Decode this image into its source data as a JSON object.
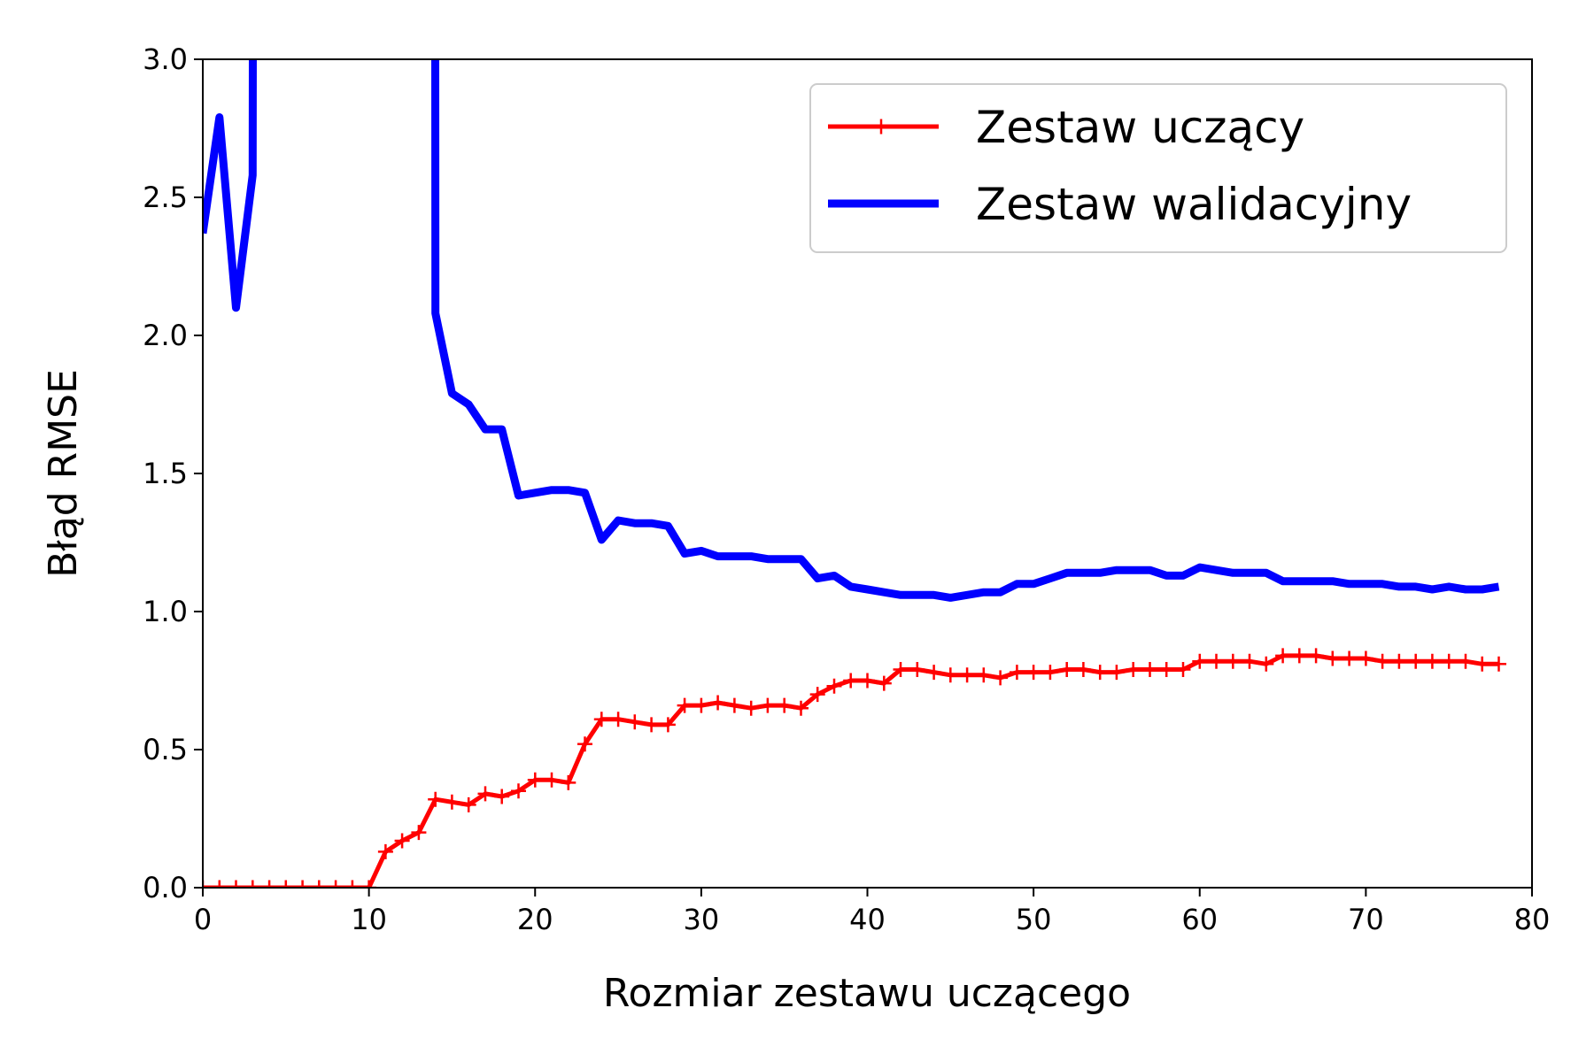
{
  "chart_data": {
    "type": "line",
    "xlabel": "Rozmiar zestawu uczącego",
    "ylabel": "Błąd RMSE",
    "xlim": [
      0,
      80
    ],
    "ylim": [
      0,
      3.0
    ],
    "xticks": [
      "0",
      "10",
      "20",
      "30",
      "40",
      "50",
      "60",
      "70",
      "80"
    ],
    "yticks": [
      "0.0",
      "0.5",
      "1.0",
      "1.5",
      "2.0",
      "2.5",
      "3.0"
    ],
    "grid": false,
    "legend_position": "top-right",
    "series": [
      {
        "name": "Zestaw uczący",
        "color": "#ff0000",
        "marker": "plus",
        "x": [
          0,
          1,
          2,
          3,
          4,
          5,
          6,
          7,
          8,
          9,
          10,
          11,
          12,
          13,
          14,
          15,
          16,
          17,
          18,
          19,
          20,
          21,
          22,
          23,
          24,
          25,
          26,
          27,
          28,
          29,
          30,
          31,
          32,
          33,
          34,
          35,
          36,
          37,
          38,
          39,
          40,
          41,
          42,
          43,
          44,
          45,
          46,
          47,
          48,
          49,
          50,
          51,
          52,
          53,
          54,
          55,
          56,
          57,
          58,
          59,
          60,
          61,
          62,
          63,
          64,
          65,
          66,
          67,
          68,
          69,
          70,
          71,
          72,
          73,
          74,
          75,
          76,
          77,
          78
        ],
        "y": [
          0,
          0,
          0,
          0,
          0,
          0,
          0,
          0,
          0,
          0,
          0,
          0.13,
          0.17,
          0.2,
          0.32,
          0.31,
          0.3,
          0.34,
          0.33,
          0.35,
          0.39,
          0.39,
          0.38,
          0.52,
          0.61,
          0.61,
          0.6,
          0.59,
          0.59,
          0.66,
          0.66,
          0.67,
          0.66,
          0.65,
          0.66,
          0.66,
          0.65,
          0.7,
          0.73,
          0.75,
          0.75,
          0.74,
          0.79,
          0.79,
          0.78,
          0.77,
          0.77,
          0.77,
          0.76,
          0.78,
          0.78,
          0.78,
          0.79,
          0.79,
          0.78,
          0.78,
          0.79,
          0.79,
          0.79,
          0.79,
          0.82,
          0.82,
          0.82,
          0.82,
          0.81,
          0.84,
          0.84,
          0.84,
          0.83,
          0.83,
          0.83,
          0.82,
          0.82,
          0.82,
          0.82,
          0.82,
          0.82,
          0.81,
          0.81
        ]
      },
      {
        "name": "Zestaw walidacyjny",
        "color": "#0000ff",
        "marker": "none",
        "x": [
          0,
          1,
          2,
          3,
          3.01,
          13.99,
          14,
          15,
          16,
          17,
          18,
          19,
          20,
          21,
          22,
          23,
          24,
          25,
          26,
          27,
          28,
          29,
          30,
          31,
          32,
          33,
          34,
          35,
          36,
          37,
          38,
          39,
          40,
          41,
          42,
          43,
          44,
          45,
          46,
          47,
          48,
          49,
          50,
          51,
          52,
          53,
          54,
          55,
          56,
          57,
          58,
          59,
          60,
          61,
          62,
          63,
          64,
          65,
          66,
          67,
          68,
          69,
          70,
          71,
          72,
          73,
          74,
          75,
          76,
          77,
          78
        ],
        "y": [
          2.37,
          2.79,
          2.1,
          2.58,
          3.05,
          3.05,
          2.08,
          1.79,
          1.75,
          1.66,
          1.66,
          1.42,
          1.43,
          1.44,
          1.44,
          1.43,
          1.26,
          1.33,
          1.32,
          1.32,
          1.31,
          1.21,
          1.22,
          1.2,
          1.2,
          1.2,
          1.19,
          1.19,
          1.19,
          1.12,
          1.13,
          1.09,
          1.08,
          1.07,
          1.06,
          1.06,
          1.06,
          1.05,
          1.06,
          1.07,
          1.07,
          1.1,
          1.1,
          1.12,
          1.14,
          1.14,
          1.14,
          1.15,
          1.15,
          1.15,
          1.13,
          1.13,
          1.16,
          1.15,
          1.14,
          1.14,
          1.14,
          1.11,
          1.11,
          1.11,
          1.11,
          1.1,
          1.1,
          1.1,
          1.09,
          1.09,
          1.08,
          1.09,
          1.08,
          1.08,
          1.09
        ]
      }
    ]
  }
}
